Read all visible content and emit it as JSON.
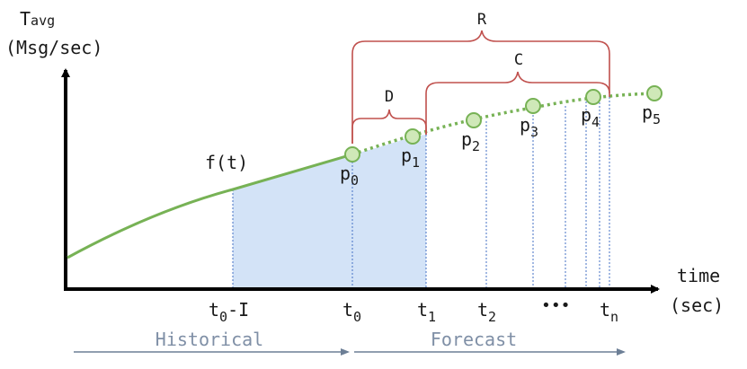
{
  "y_axis": {
    "label": "T",
    "label_sub": "avg",
    "unit": "(Msg/sec)"
  },
  "x_axis": {
    "label": "time",
    "unit": "(sec)"
  },
  "function_label": "f(t)",
  "ticks": {
    "t0_minus_I": {
      "base": "t",
      "sub": "0",
      "suffix": "-I"
    },
    "t0": {
      "base": "t",
      "sub": "0"
    },
    "t1": {
      "base": "t",
      "sub": "1"
    },
    "t2": {
      "base": "t",
      "sub": "2"
    },
    "tn": {
      "base": "t",
      "sub": "n"
    },
    "ellipsis": "•••"
  },
  "points": [
    {
      "base": "p",
      "sub": "0"
    },
    {
      "base": "p",
      "sub": "1"
    },
    {
      "base": "p",
      "sub": "2"
    },
    {
      "base": "p",
      "sub": "3"
    },
    {
      "base": "p",
      "sub": "4"
    },
    {
      "base": "p",
      "sub": "5"
    }
  ],
  "braces": {
    "R": "R",
    "C": "C",
    "D": "D"
  },
  "phases": {
    "historical": "Historical",
    "forecast": "Forecast"
  },
  "colors": {
    "curve": "#77b255",
    "point_fill": "#cfe8b8",
    "shade": "#d3e3f7",
    "brace": "#c0504d",
    "guide": "#4472c4",
    "phase_arrow": "#6d7f96",
    "axis": "#000000"
  }
}
